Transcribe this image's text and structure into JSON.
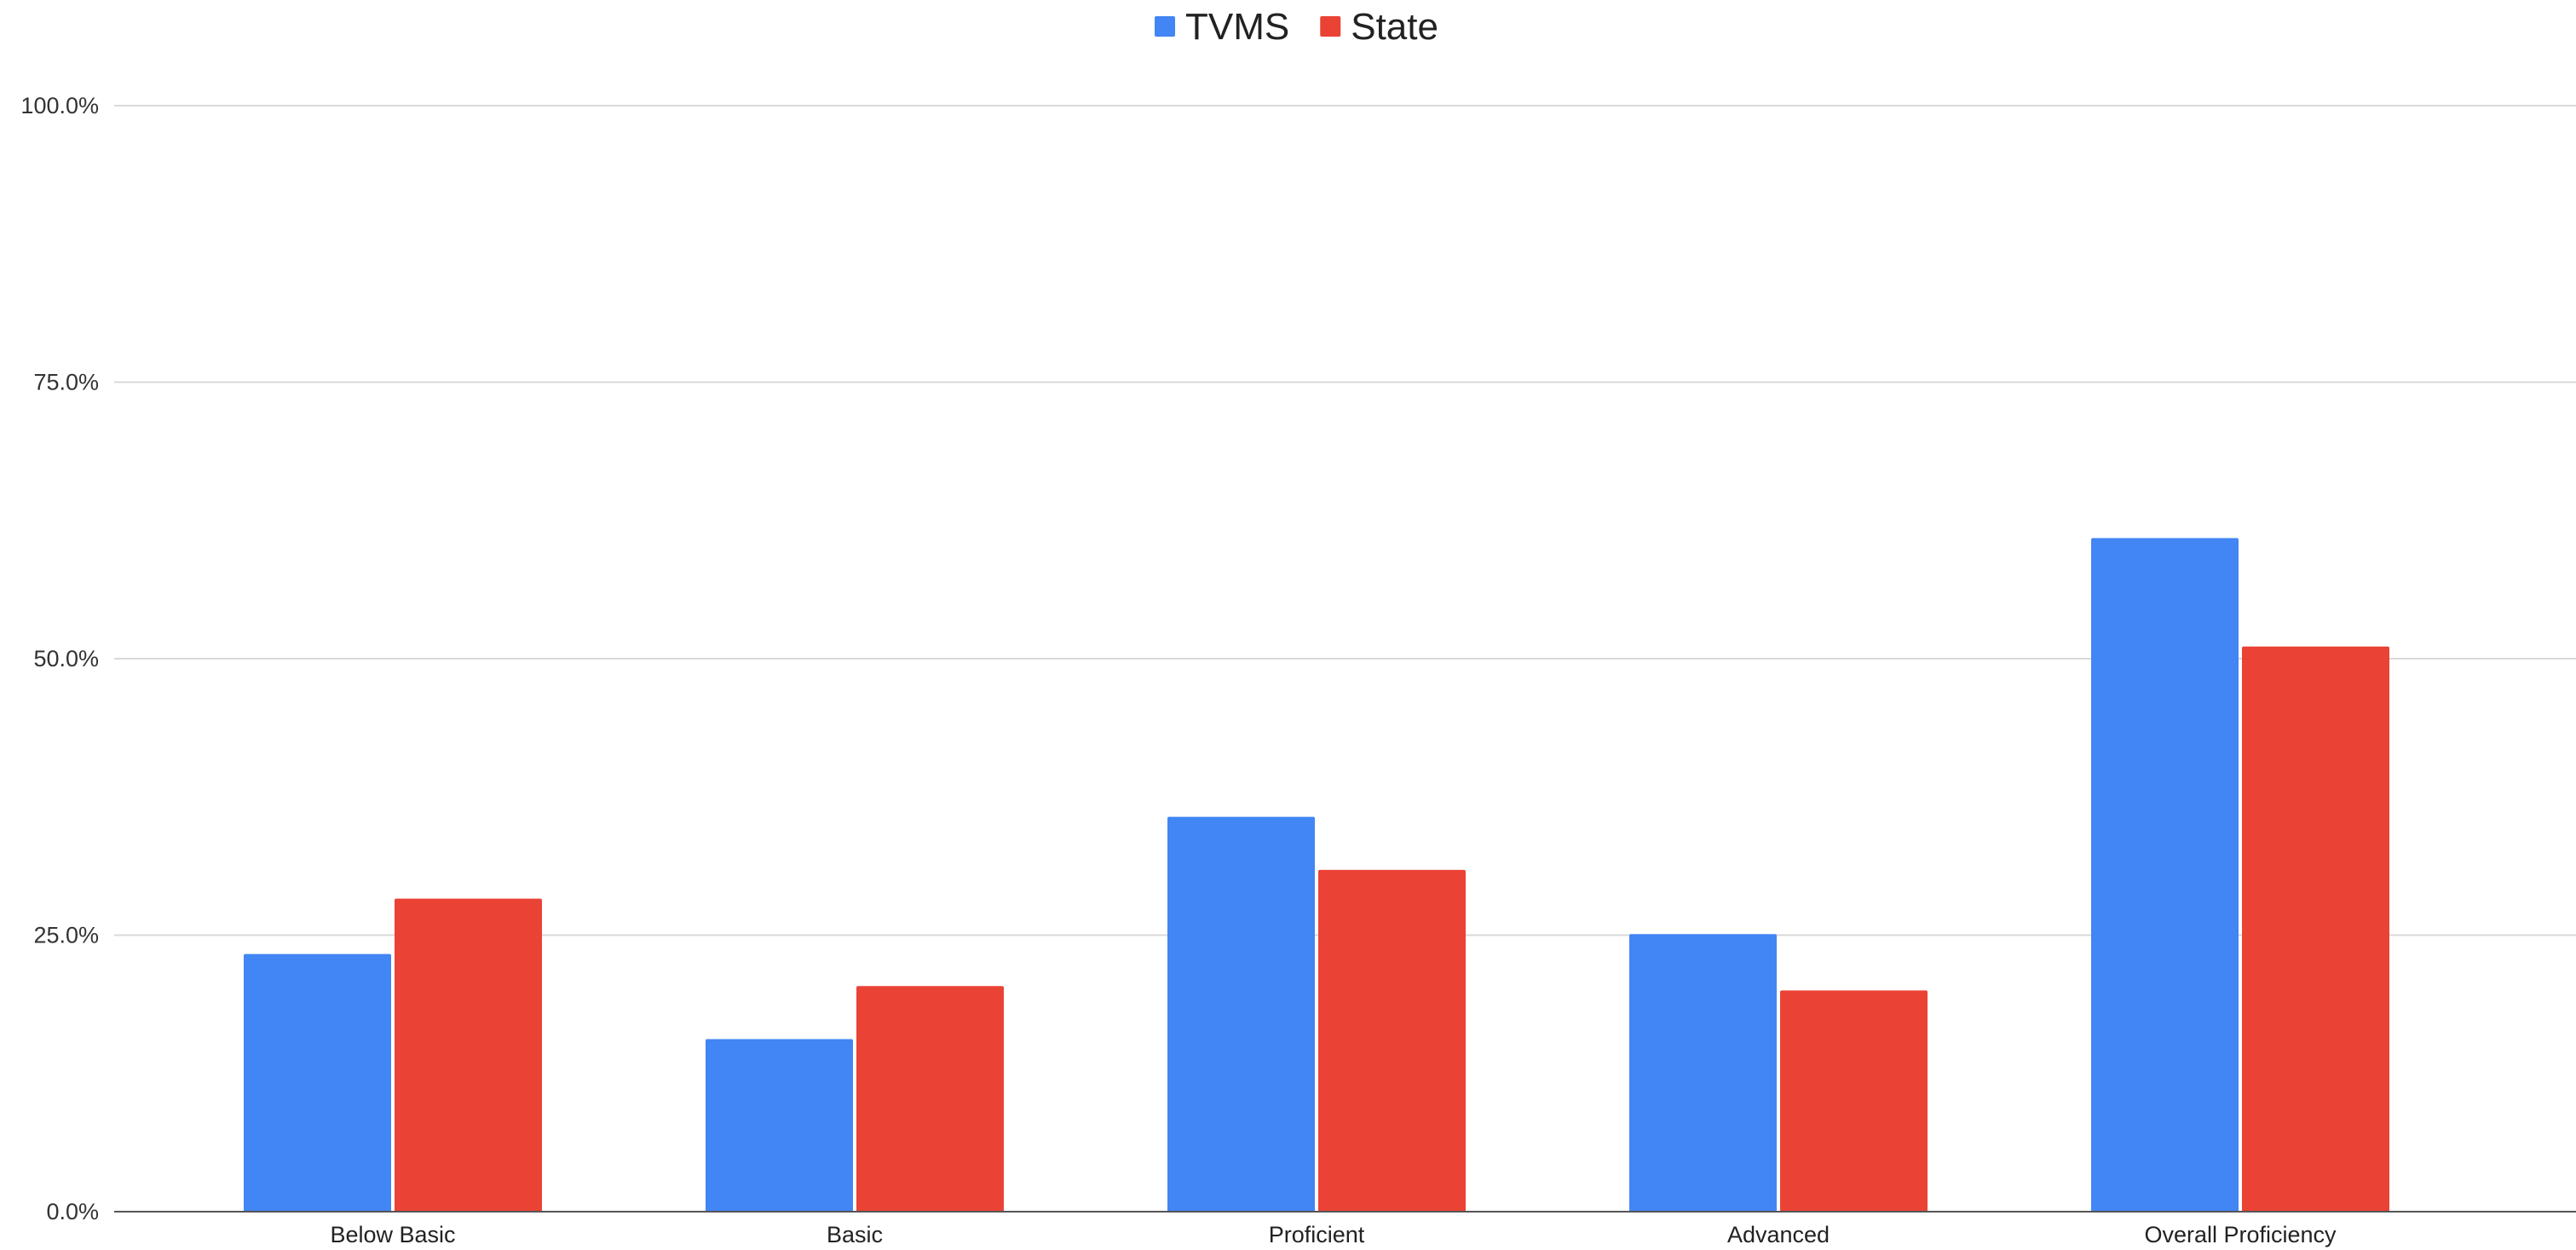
{
  "chart_data": {
    "type": "bar",
    "categories": [
      "Below Basic",
      "Basic",
      "Proficient",
      "Advanced",
      "Overall Proficiency"
    ],
    "series": [
      {
        "name": "TVMS",
        "color": "#4285f4",
        "values": [
          23.3,
          15.6,
          35.7,
          25.1,
          60.9
        ]
      },
      {
        "name": "State",
        "color": "#ea4335",
        "values": [
          28.3,
          20.4,
          30.9,
          20.0,
          51.1
        ]
      }
    ],
    "ylim": [
      0,
      100
    ],
    "yticks": [
      0,
      25,
      50,
      75,
      100
    ],
    "ytick_labels": [
      "0.0%",
      "25.0%",
      "50.0%",
      "75.0%",
      "100.0%"
    ],
    "grid": true,
    "legend_position": "top-center",
    "title": "",
    "xlabel": "",
    "ylabel": ""
  }
}
